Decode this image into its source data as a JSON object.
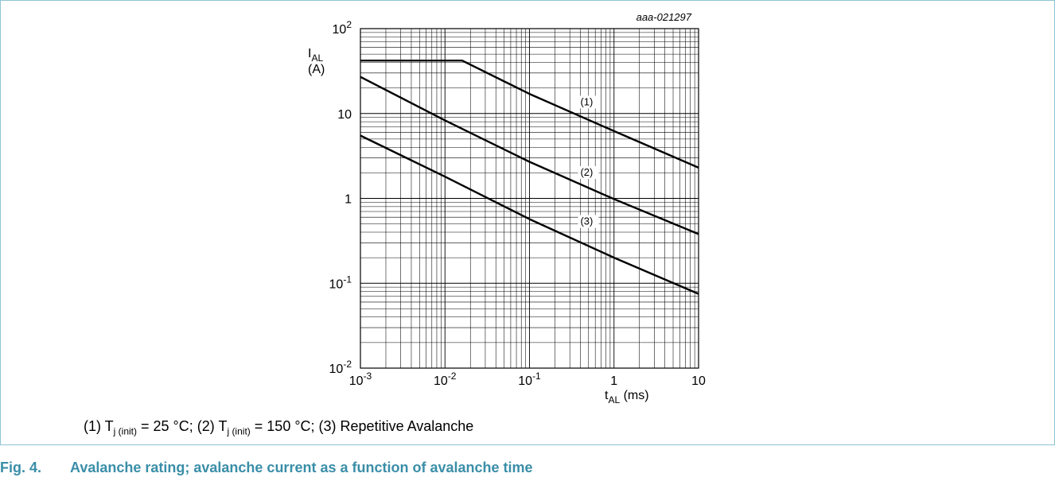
{
  "figure": {
    "code": "aaa-021297",
    "caption_number": "Fig. 4.",
    "caption_text": "Avalanche rating; avalanche current as a function of avalanche time",
    "caption_color": "#3a8ea8",
    "border_color": "#8fc4d4"
  },
  "legend_note": {
    "item1_prefix": "(1) T",
    "item1_sub": "j (init)",
    "item1_suffix": " = 25 °C; ",
    "item2_prefix": "(2) T",
    "item2_sub": "j (init)",
    "item2_suffix": " = 150 °C; ",
    "item3": "(3) Repetitive Avalanche"
  },
  "chart_data": {
    "type": "line",
    "x_scale": "log",
    "y_scale": "log",
    "xlim": [
      0.001,
      10
    ],
    "ylim": [
      0.01,
      100
    ],
    "grid": true,
    "ylabel": {
      "main": "I",
      "sub": "AL",
      "unit": "(A)"
    },
    "xlabel": {
      "main": "t",
      "sub": "AL",
      "unit": " (ms)"
    },
    "x_ticks": [
      {
        "base": "10",
        "exp": "-3"
      },
      {
        "base": "10",
        "exp": "-2"
      },
      {
        "base": "10",
        "exp": "-1"
      },
      {
        "base": "1",
        "exp": ""
      },
      {
        "base": "10",
        "exp": ""
      }
    ],
    "y_ticks": [
      {
        "base": "10",
        "exp": "-2"
      },
      {
        "base": "10",
        "exp": "-1"
      },
      {
        "base": "1",
        "exp": ""
      },
      {
        "base": "10",
        "exp": ""
      },
      {
        "base": "10",
        "exp": "2"
      }
    ],
    "series": [
      {
        "name": "(1)",
        "points": [
          [
            0.001,
            42
          ],
          [
            0.016,
            42
          ],
          [
            0.1,
            17
          ],
          [
            1,
            6.2
          ],
          [
            10,
            2.3
          ]
        ],
        "label_at": [
          0.4,
          12.5
        ]
      },
      {
        "name": "(2)",
        "points": [
          [
            0.001,
            27
          ],
          [
            0.01,
            8.3
          ],
          [
            0.1,
            2.7
          ],
          [
            1,
            0.98
          ],
          [
            10,
            0.38
          ]
        ],
        "label_at": [
          0.4,
          1.85
        ]
      },
      {
        "name": "(3)",
        "points": [
          [
            0.001,
            5.5
          ],
          [
            0.01,
            1.8
          ],
          [
            0.1,
            0.57
          ],
          [
            1,
            0.2
          ],
          [
            10,
            0.075
          ]
        ],
        "label_at": [
          0.4,
          0.49
        ]
      }
    ]
  }
}
